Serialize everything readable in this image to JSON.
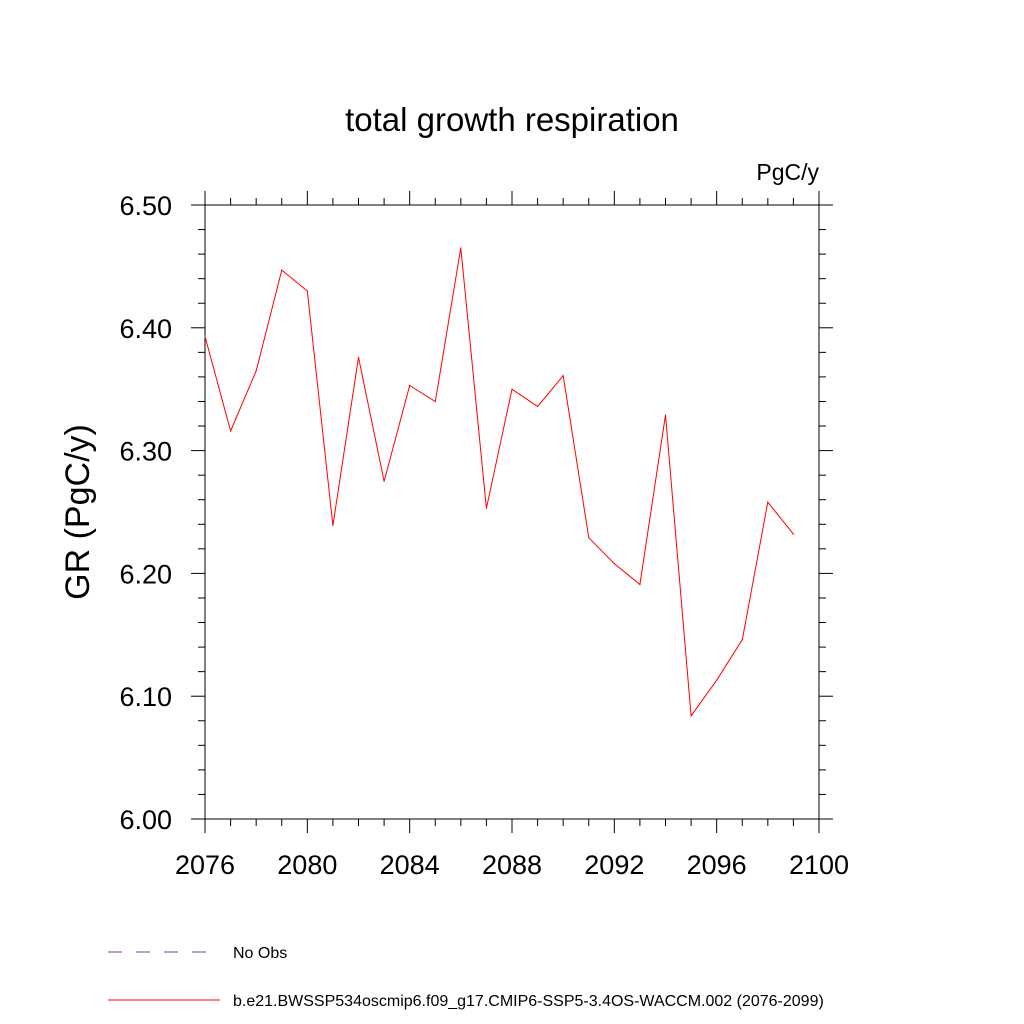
{
  "chart_data": {
    "type": "line",
    "title": "total growth respiration",
    "units_label": "PgC/y",
    "ylabel": "GR  (PgC/y)",
    "xlabel": "",
    "xlim": [
      2076,
      2100
    ],
    "ylim": [
      6.0,
      6.5
    ],
    "x_ticks": [
      2076,
      2080,
      2084,
      2088,
      2092,
      2096,
      2100
    ],
    "x_tick_labels": [
      "2076",
      "2080",
      "2084",
      "2088",
      "2092",
      "2096",
      "2100"
    ],
    "y_ticks": [
      6.0,
      6.1,
      6.2,
      6.3,
      6.4,
      6.5
    ],
    "y_tick_labels": [
      "6.00",
      "6.10",
      "6.20",
      "6.30",
      "6.40",
      "6.50"
    ],
    "grid": false,
    "legend_position": "bottom",
    "series": [
      {
        "name": "b.e21.BWSSP534oscmip6.f09_g17.CMIP6-SSP5-3.4OS-WACCM.002 (2076-2099)",
        "color": "#ff0000",
        "x": [
          2076,
          2077,
          2078,
          2079,
          2080,
          2081,
          2082,
          2083,
          2084,
          2085,
          2086,
          2087,
          2088,
          2089,
          2090,
          2091,
          2092,
          2093,
          2094,
          2095,
          2096,
          2097,
          2098,
          2099
        ],
        "values": [
          6.393,
          6.316,
          6.365,
          6.447,
          6.43,
          6.239,
          6.376,
          6.275,
          6.353,
          6.34,
          6.465,
          6.253,
          6.35,
          6.336,
          6.361,
          6.229,
          6.208,
          6.191,
          6.329,
          6.084,
          6.113,
          6.146,
          6.258,
          6.232
        ]
      }
    ],
    "legend": [
      {
        "label": "No Obs",
        "style": "dashed",
        "color": "#5b4fa6"
      },
      {
        "label": "b.e21.BWSSP534oscmip6.f09_g17.CMIP6-SSP5-3.4OS-WACCM.002 (2076-2099)",
        "style": "solid",
        "color": "#ff0000"
      }
    ]
  }
}
